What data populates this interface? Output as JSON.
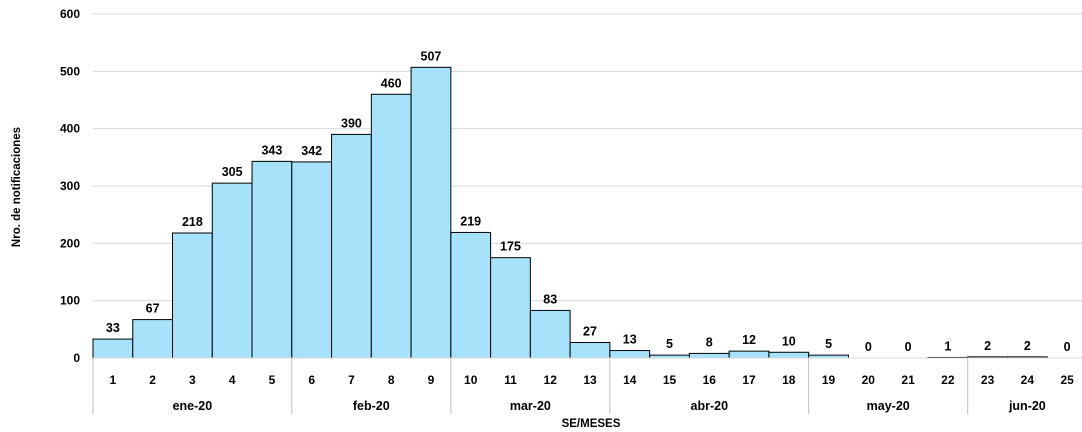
{
  "chart_data": {
    "type": "bar",
    "categories": [
      "1",
      "2",
      "3",
      "4",
      "5",
      "6",
      "7",
      "8",
      "9",
      "10",
      "11",
      "12",
      "13",
      "14",
      "15",
      "16",
      "17",
      "18",
      "19",
      "20",
      "21",
      "22",
      "23",
      "24",
      "25"
    ],
    "values": [
      33,
      67,
      218,
      305,
      343,
      342,
      390,
      460,
      507,
      219,
      175,
      83,
      27,
      13,
      5,
      8,
      12,
      10,
      5,
      0,
      0,
      1,
      2,
      2,
      0
    ],
    "groups": [
      {
        "label": "ene-20",
        "count": 5
      },
      {
        "label": "feb-20",
        "count": 4
      },
      {
        "label": "mar-20",
        "count": 4
      },
      {
        "label": "abr-20",
        "count": 5
      },
      {
        "label": "may-20",
        "count": 4
      },
      {
        "label": "jun-20",
        "count": 3
      }
    ],
    "xlabel": "SE/MESES",
    "ylabel": "Nro. de notificaciones",
    "ylim": [
      0,
      600
    ],
    "yticks": [
      0,
      100,
      200,
      300,
      400,
      500,
      600
    ],
    "bar_color": "#a6e3fb",
    "grid": true,
    "data_labels": true
  }
}
